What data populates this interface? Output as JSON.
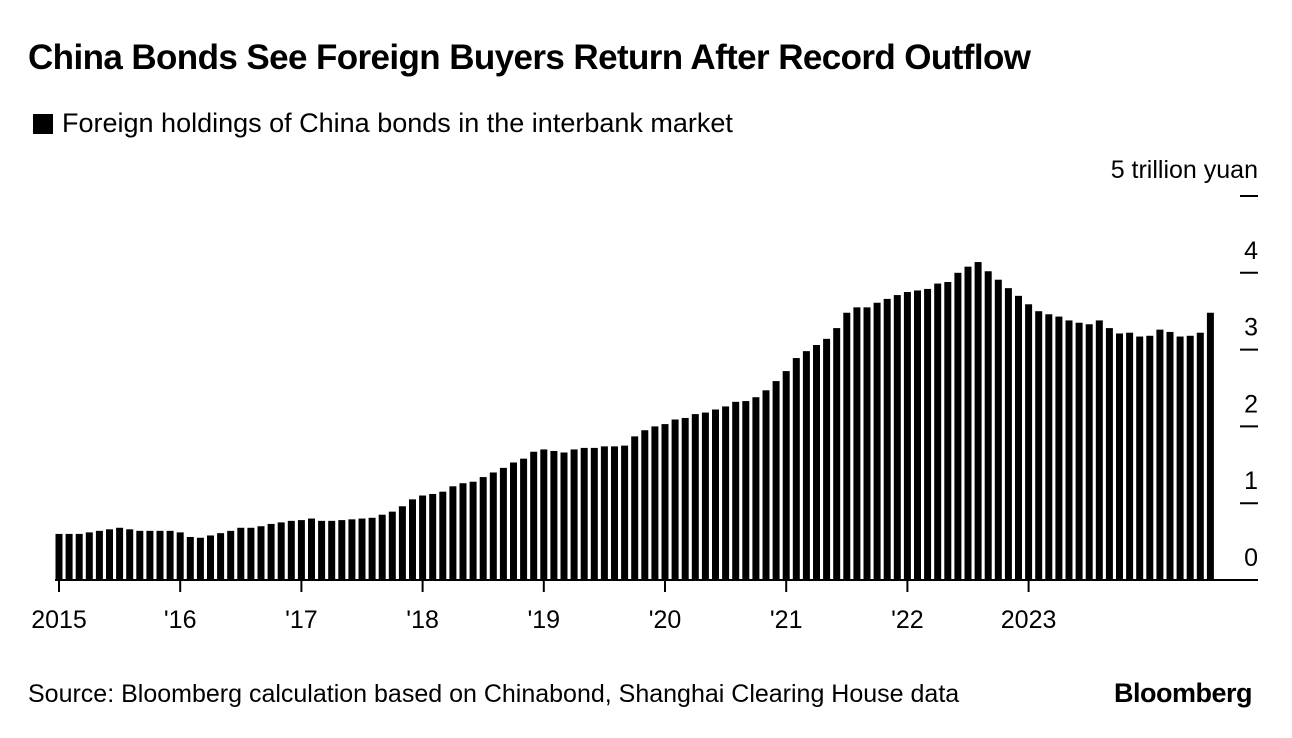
{
  "title": "China Bonds See Foreign Buyers Return After Record Outflow",
  "legend_label": "Foreign holdings of China bonds in the interbank market",
  "source": "Source: Bloomberg calculation based on Chinabond, Shanghai Clearing House data",
  "logo": "Bloomberg",
  "colors": {
    "bar": "#000000",
    "axis": "#000000",
    "background": "#ffffff"
  },
  "chart_data": {
    "type": "bar",
    "title": "China Bonds See Foreign Buyers Return After Record Outflow",
    "series_name": "Foreign holdings of China bonds in the interbank market",
    "unit_label": "5 trillion yuan",
    "ylim": [
      0,
      5
    ],
    "y_ticks": [
      0,
      1,
      2,
      3,
      4,
      5
    ],
    "y_tick_labels": [
      "0",
      "1",
      "2",
      "3",
      "4",
      ""
    ],
    "x_ticks": [
      "2015",
      "'16",
      "'17",
      "'18",
      "'19",
      "'20",
      "'21",
      "'22",
      "2023"
    ],
    "start": "2015-01",
    "frequency": "monthly",
    "grid": false,
    "values": [
      0.6,
      0.6,
      0.6,
      0.62,
      0.64,
      0.66,
      0.68,
      0.66,
      0.64,
      0.64,
      0.64,
      0.64,
      0.62,
      0.56,
      0.55,
      0.58,
      0.61,
      0.64,
      0.68,
      0.68,
      0.7,
      0.73,
      0.75,
      0.77,
      0.78,
      0.8,
      0.77,
      0.77,
      0.78,
      0.79,
      0.8,
      0.81,
      0.85,
      0.89,
      0.96,
      1.05,
      1.1,
      1.12,
      1.15,
      1.22,
      1.26,
      1.28,
      1.34,
      1.4,
      1.46,
      1.53,
      1.58,
      1.67,
      1.7,
      1.68,
      1.66,
      1.7,
      1.72,
      1.72,
      1.74,
      1.74,
      1.75,
      1.87,
      1.95,
      2.0,
      2.03,
      2.09,
      2.11,
      2.16,
      2.18,
      2.22,
      2.26,
      2.32,
      2.33,
      2.38,
      2.47,
      2.59,
      2.72,
      2.89,
      2.98,
      3.06,
      3.14,
      3.28,
      3.48,
      3.55,
      3.55,
      3.61,
      3.66,
      3.71,
      3.75,
      3.77,
      3.79,
      3.86,
      3.88,
      4.0,
      4.08,
      4.14,
      4.02,
      3.91,
      3.8,
      3.7,
      3.59,
      3.5,
      3.46,
      3.43,
      3.38,
      3.35,
      3.33,
      3.38,
      3.28,
      3.21,
      3.22,
      3.17,
      3.18,
      3.26,
      3.23,
      3.17,
      3.18,
      3.22,
      3.48
    ]
  }
}
